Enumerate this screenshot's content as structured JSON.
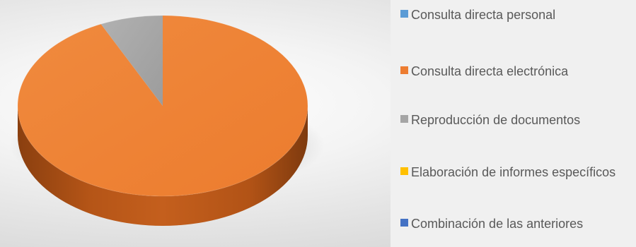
{
  "chart_data": {
    "type": "pie",
    "categories": [
      "Consulta directa personal",
      "Consulta directa electrónica",
      "Reproducción de documentos",
      "Elaboración de informes específicos",
      "Combinación de las anteriores"
    ],
    "values": [
      0,
      93,
      7,
      0,
      0
    ],
    "colors": [
      "#5b9bd5",
      "#ed7d31",
      "#a5a5a5",
      "#ffc000",
      "#4472c4"
    ],
    "legend_position": "right",
    "style": "3d"
  }
}
